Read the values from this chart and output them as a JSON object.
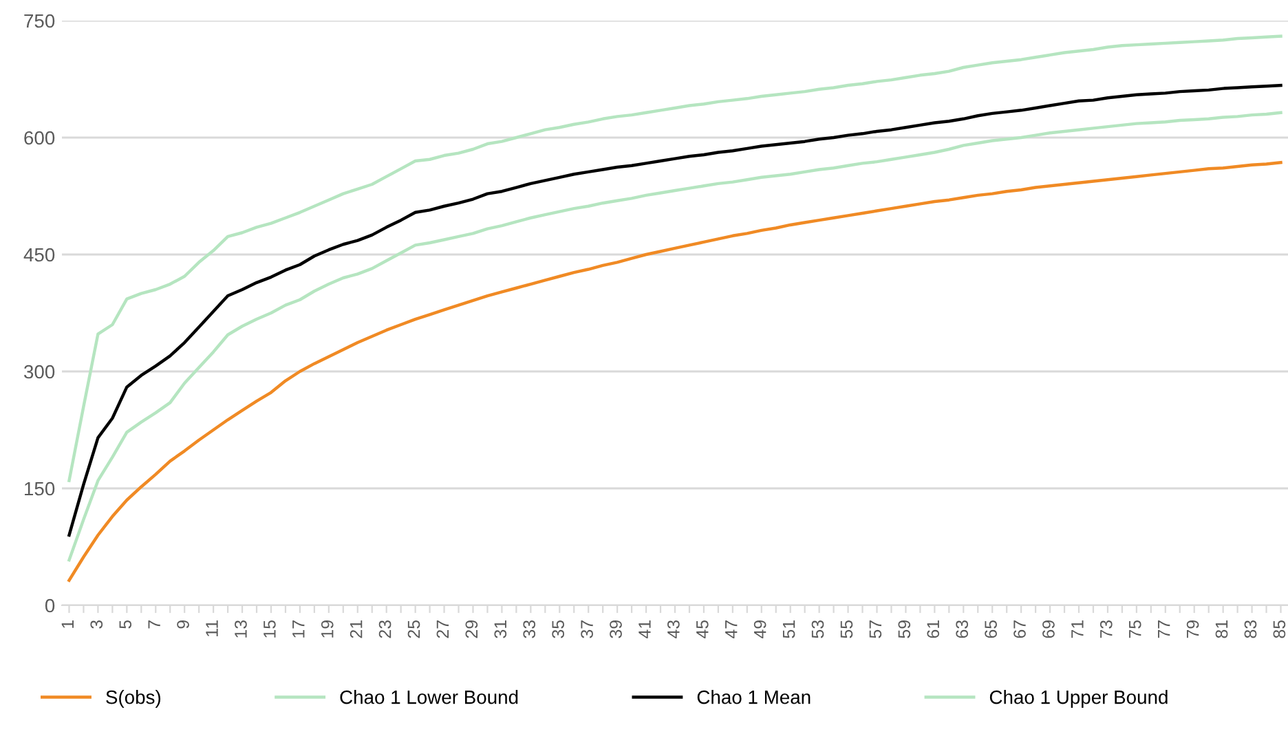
{
  "chart_data": {
    "type": "line",
    "categories": [
      "1",
      null,
      "3",
      null,
      "5",
      null,
      "7",
      null,
      "9",
      null,
      "11",
      null,
      "13",
      null,
      "15",
      null,
      "17",
      null,
      "19",
      null,
      "21",
      null,
      "23",
      null,
      "25",
      null,
      "27",
      null,
      "29",
      null,
      "31",
      null,
      "33",
      null,
      "35",
      null,
      "37",
      null,
      "39",
      null,
      "41",
      null,
      "43",
      null,
      "45",
      null,
      "47",
      null,
      "49",
      null,
      "51",
      null,
      "53",
      null,
      "55",
      null,
      "57",
      null,
      "59",
      null,
      "61",
      null,
      "63",
      null,
      "65",
      null,
      "67",
      null,
      "69",
      null,
      "71",
      null,
      "73",
      null,
      "75",
      null,
      "77",
      null,
      "79",
      null,
      "81",
      null,
      "83",
      null,
      "85"
    ],
    "ylim": [
      0,
      750
    ],
    "yticks": [
      0,
      150,
      300,
      450,
      600,
      750
    ],
    "grid": "y",
    "legend": "bottom",
    "marker": "none",
    "line_style": "solid",
    "series": [
      {
        "name": "S(obs)",
        "color": "#f08a24",
        "values": [
          32,
          62,
          90,
          114,
          135,
          152,
          168,
          185,
          198,
          212,
          225,
          238,
          250,
          262,
          273,
          288,
          300,
          310,
          319,
          328,
          337,
          345,
          353,
          360,
          367,
          373,
          379,
          385,
          391,
          397,
          402,
          407,
          412,
          417,
          422,
          427,
          431,
          436,
          440,
          445,
          450,
          454,
          458,
          462,
          466,
          470,
          474,
          477,
          481,
          484,
          488,
          491,
          494,
          497,
          500,
          503,
          506,
          509,
          512,
          515,
          518,
          520,
          523,
          526,
          528,
          531,
          533,
          536,
          538,
          540,
          542,
          544,
          546,
          548,
          550,
          552,
          554,
          556,
          558,
          560,
          561,
          563,
          565,
          566,
          568
        ]
      },
      {
        "name": "Chao 1 Lower Bound",
        "color": "#b5e5c0",
        "values": [
          58,
          110,
          160,
          190,
          222,
          235,
          247,
          260,
          285,
          305,
          325,
          347,
          358,
          367,
          375,
          385,
          392,
          403,
          412,
          420,
          425,
          432,
          442,
          452,
          462,
          465,
          469,
          473,
          477,
          483,
          487,
          492,
          497,
          501,
          505,
          509,
          512,
          516,
          519,
          522,
          526,
          529,
          532,
          535,
          538,
          541,
          543,
          546,
          549,
          551,
          553,
          556,
          559,
          561,
          564,
          567,
          569,
          572,
          575,
          578,
          581,
          585,
          590,
          593,
          596,
          598,
          600,
          603,
          606,
          608,
          610,
          612,
          614,
          616,
          618,
          619,
          620,
          622,
          623,
          624,
          626,
          627,
          629,
          630,
          632
        ]
      },
      {
        "name": "Chao 1 Mean",
        "color": "#000000",
        "values": [
          90,
          155,
          215,
          240,
          280,
          295,
          307,
          320,
          337,
          357,
          377,
          397,
          405,
          414,
          421,
          430,
          437,
          448,
          456,
          463,
          468,
          475,
          485,
          494,
          504,
          507,
          512,
          516,
          521,
          528,
          531,
          536,
          541,
          545,
          549,
          553,
          556,
          559,
          562,
          564,
          567,
          570,
          573,
          576,
          578,
          581,
          583,
          586,
          589,
          591,
          593,
          595,
          598,
          600,
          603,
          605,
          608,
          610,
          613,
          616,
          619,
          621,
          624,
          628,
          631,
          633,
          635,
          638,
          641,
          644,
          647,
          648,
          651,
          653,
          655,
          656,
          657,
          659,
          660,
          661,
          663,
          664,
          665,
          666,
          667
        ]
      },
      {
        "name": "Chao 1 Upper Bound",
        "color": "#b5e5c0",
        "values": [
          160,
          255,
          348,
          360,
          393,
          400,
          405,
          412,
          422,
          440,
          455,
          473,
          478,
          485,
          490,
          497,
          504,
          512,
          520,
          528,
          534,
          540,
          550,
          560,
          570,
          572,
          577,
          580,
          585,
          592,
          595,
          600,
          605,
          610,
          613,
          617,
          620,
          624,
          627,
          629,
          632,
          635,
          638,
          641,
          643,
          646,
          648,
          650,
          653,
          655,
          657,
          659,
          662,
          664,
          667,
          669,
          672,
          674,
          677,
          680,
          682,
          685,
          690,
          693,
          696,
          698,
          700,
          703,
          706,
          709,
          711,
          713,
          716,
          718,
          719,
          720,
          721,
          722,
          723,
          724,
          725,
          727,
          728,
          729,
          730
        ]
      }
    ]
  }
}
